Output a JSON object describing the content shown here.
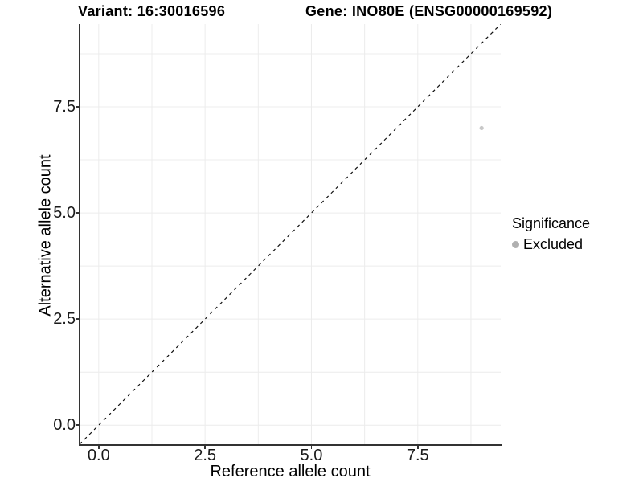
{
  "header": {
    "variant_title": "Variant: 16:30016596",
    "gene_title": "Gene: INO80E (ENSG00000169592)"
  },
  "chart_data": {
    "type": "scatter",
    "xlabel": "Reference allele count",
    "ylabel": "Alternative allele count",
    "xlim": [
      0,
      9
    ],
    "ylim": [
      0,
      9
    ],
    "expansion": 0.05,
    "xticks": [
      0,
      2.5,
      5,
      7.5
    ],
    "xtick_labels": [
      "0.0",
      "2.5",
      "5.0",
      "7.5"
    ],
    "yticks": [
      0,
      2.5,
      5,
      7.5
    ],
    "ytick_labels": [
      "0.0",
      "2.5",
      "5.0",
      "7.5"
    ],
    "minor_xticks": [
      1.25,
      3.75,
      6.25,
      8.75
    ],
    "minor_yticks": [
      1.25,
      3.75,
      6.25,
      8.75
    ],
    "grid": true,
    "points": [
      {
        "x": 9,
        "y": 7,
        "series": "Excluded"
      }
    ],
    "identity_line": {
      "slope": 1,
      "intercept": 0,
      "style": "dashed"
    },
    "legend": {
      "position": "right",
      "title": "Significance",
      "entries": [
        {
          "label": "Excluded",
          "color": "#b0b0b0"
        }
      ]
    }
  },
  "colors": {
    "background": "#ffffff",
    "grid": "#ececec",
    "axis_line": "#333333",
    "tick_label": "#1a1a1a",
    "title_text": "#000000",
    "point": "#c8c8c8",
    "legend_dot": "#b0b0b0",
    "dashed_line": "#111111"
  }
}
